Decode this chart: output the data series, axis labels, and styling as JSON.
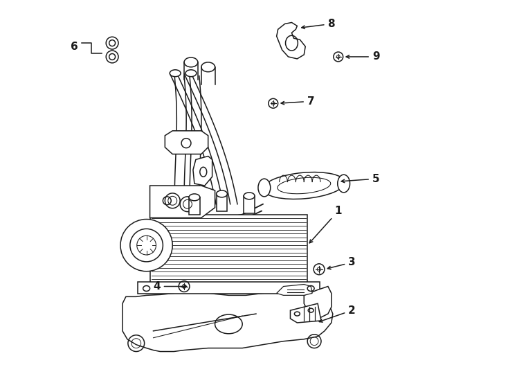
{
  "bg_color": "#ffffff",
  "line_color": "#1a1a1a",
  "lw": 1.1,
  "fig_width": 7.34,
  "fig_height": 5.4,
  "dpi": 100
}
